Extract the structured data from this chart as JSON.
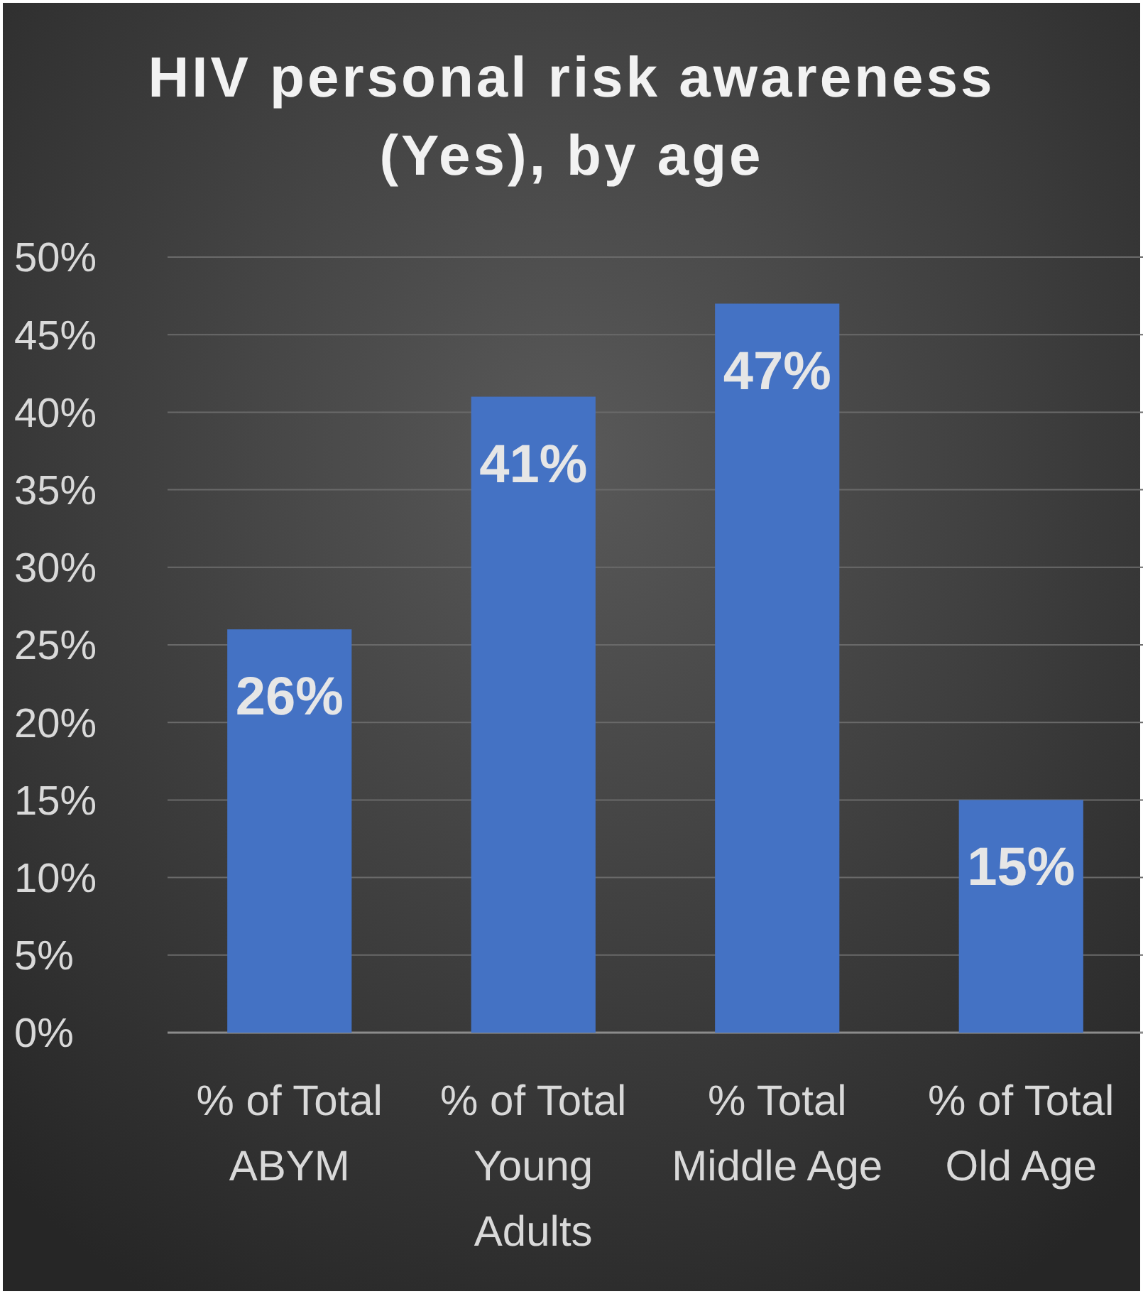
{
  "chart_data": {
    "type": "bar",
    "title": "HIV personal risk awareness (Yes), by age",
    "categories": [
      "% of Total ABYM",
      "% of Total Young Adults",
      "% Total Middle Age",
      "% of Total Old Age"
    ],
    "values": [
      26,
      41,
      47,
      15
    ],
    "value_labels": [
      "26%",
      "41%",
      "47%",
      "15%"
    ],
    "color": "#4472c4",
    "ylim": [
      0,
      50
    ],
    "yticks": [
      {
        "value": 0,
        "label": "0%"
      },
      {
        "value": 5,
        "label": "5%"
      },
      {
        "value": 10,
        "label": "10%"
      },
      {
        "value": 15,
        "label": "15%"
      },
      {
        "value": 20,
        "label": "20%"
      },
      {
        "value": 25,
        "label": "25%"
      },
      {
        "value": 30,
        "label": "30%"
      },
      {
        "value": 35,
        "label": "35%"
      },
      {
        "value": 40,
        "label": "40%"
      },
      {
        "value": 45,
        "label": "45%"
      },
      {
        "value": 50,
        "label": "50%"
      }
    ],
    "grid": "y"
  }
}
